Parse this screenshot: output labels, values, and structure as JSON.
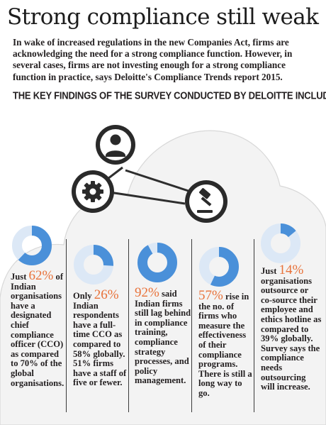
{
  "title": "Strong compliance still weak",
  "intro": "In wake of increased regulations in the new Companies Act, firms are acknowledging the need for a strong compliance function. However, in several cases, firms are not investing enough for a strong compliance function in practice, says Deloitte's Compliance Trends report 2015.",
  "subhead": "THE KEY FINDINGS OF THE SURVEY CONDUCTED BY DELOITTE INCLUDE",
  "icons": [
    "user-icon",
    "gear-icon",
    "gavel-icon"
  ],
  "colors": {
    "accent": "#e8723a",
    "ring": "#4a90d9",
    "ring_light": "#dce8f6",
    "cloud": "#f3f3f3"
  },
  "findings": [
    {
      "pct": "62%",
      "prefix": "Just ",
      "text": "of Indian organisations have a designated chief compliance officer (CCO) as compared to 70% of the global organisations.",
      "value": 62
    },
    {
      "pct": "26%",
      "prefix": "Only ",
      "text": "Indian respondents have a full-time CCO as compared to 58% globally. 51% firms have a staff of five or fewer.",
      "value": 26
    },
    {
      "pct": "92%",
      "prefix": "",
      "text": "said Indian firms still lag behind in compliance training, compliance strategy processes, and policy management.",
      "value": 92
    },
    {
      "pct": "57%",
      "prefix": "",
      "text": "rise in the no. of firms who measure the effectiveness of their compliance programs. There is still a long way to go.",
      "value": 57
    },
    {
      "pct": "14%",
      "prefix": "Just ",
      "text": "organisations outsource or co-source their employee and ethics hotline as compared to 39% globally. Survey says the compliance needs outsourcing will increase.",
      "value": 14
    }
  ]
}
